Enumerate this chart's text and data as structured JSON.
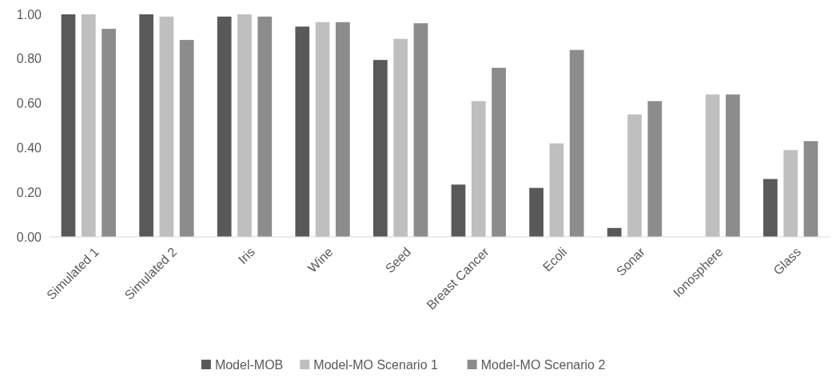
{
  "chart_data": {
    "type": "bar",
    "categories": [
      "Simulated 1",
      "Simulated 2",
      "Iris",
      "Wine",
      "Seed",
      "Breast Cancer",
      "Ecoli",
      "Sonar",
      "Ionosphere",
      "Glass"
    ],
    "series": [
      {
        "name": "Model-MOB",
        "color": "#595959",
        "values": [
          1.0,
          1.0,
          0.99,
          0.945,
          0.795,
          0.235,
          0.22,
          0.04,
          0,
          0.26
        ]
      },
      {
        "name": "Model-MO Scenario 1",
        "color": "#bfbfbf",
        "values": [
          1.0,
          0.99,
          1.0,
          0.965,
          0.89,
          0.61,
          0.42,
          0.55,
          0.64,
          0.39
        ]
      },
      {
        "name": "Model-MO Scenario 2",
        "color": "#8c8c8c",
        "values": [
          0.935,
          0.885,
          0.99,
          0.965,
          0.96,
          0.76,
          0.84,
          0.61,
          0.64,
          0.43
        ]
      }
    ],
    "ylim": [
      0,
      1
    ],
    "yticks": [
      {
        "value": 0,
        "label": "0.00"
      },
      {
        "value": 0.2,
        "label": "0.20"
      },
      {
        "value": 0.4,
        "label": "0.40"
      },
      {
        "value": 0.6,
        "label": "0.60"
      },
      {
        "value": 0.8,
        "label": "0.80"
      },
      {
        "value": 1,
        "label": "1.00"
      }
    ],
    "legend": "bottom"
  }
}
